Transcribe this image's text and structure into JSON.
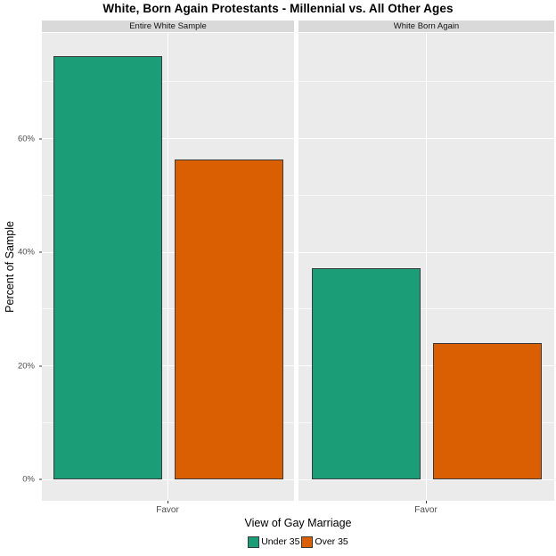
{
  "title": "White, Born Again Protestants - Millennial vs. All Other Ages",
  "chart_data": {
    "type": "bar",
    "title": "White, Born Again Protestants - Millennial vs. All Other Ages",
    "xlabel": "View of Gay Marriage",
    "ylabel": "Percent of Sample",
    "facets": [
      {
        "label": "Entire White Sample",
        "category": "Favor",
        "series": [
          {
            "name": "Under 35",
            "value": 74.5
          },
          {
            "name": "Over 35",
            "value": 56.3
          }
        ]
      },
      {
        "label": "White Born Again",
        "category": "Favor",
        "series": [
          {
            "name": "Under 35",
            "value": 37.2
          },
          {
            "name": "Over 35",
            "value": 24.0
          }
        ]
      }
    ],
    "legend": [
      {
        "label": "Under 35",
        "color": "#1B9E77"
      },
      {
        "label": "Over 35",
        "color": "#D95F02"
      }
    ],
    "legend_position": "bottom",
    "ylim": [
      0,
      78.6
    ],
    "yticks_major": [
      0,
      20,
      40,
      60
    ],
    "yticks_minor": [
      10,
      30,
      50,
      70
    ],
    "ytick_labels": [
      "0%",
      "20%",
      "40%",
      "60%"
    ],
    "grid": true,
    "colors": {
      "panel_bg": "#EBEBEB",
      "strip_bg": "#D9D9D9",
      "gridline": "#FFFFFF",
      "bar_border": "#3A3A3A",
      "tick_label": "#4D4D4D"
    }
  }
}
